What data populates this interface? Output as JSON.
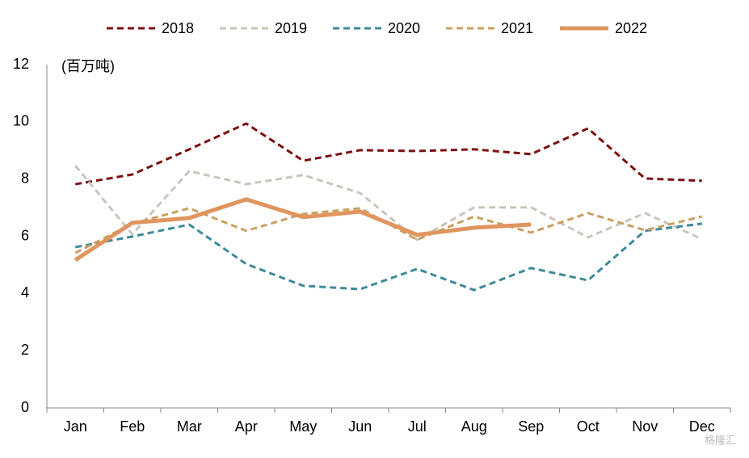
{
  "chart_data": {
    "type": "line",
    "annotation": "(百万吨)",
    "watermark": "格隆汇",
    "categories": [
      "Jan",
      "Feb",
      "Mar",
      "Apr",
      "May",
      "Jun",
      "Jul",
      "Aug",
      "Sep",
      "Oct",
      "Nov",
      "Dec"
    ],
    "series": [
      {
        "name": "2018",
        "color": "#7b1010",
        "dash": true,
        "values": [
          7.82,
          8.16,
          9.04,
          9.94,
          8.64,
          9.01,
          8.98,
          9.04,
          8.87,
          9.77,
          8.02,
          7.94
        ]
      },
      {
        "name": "2019",
        "color": "#c9c5bc",
        "dash": true,
        "values": [
          8.47,
          6.07,
          8.28,
          7.82,
          8.14,
          7.51,
          5.88,
          7.01,
          7.01,
          5.96,
          6.81,
          5.9
        ]
      },
      {
        "name": "2020",
        "color": "#3e8a9b",
        "dash": true,
        "values": [
          5.62,
          5.99,
          6.41,
          5.03,
          4.27,
          4.15,
          4.86,
          4.12,
          4.89,
          4.46,
          6.19,
          6.44
        ]
      },
      {
        "name": "2021",
        "color": "#c9a062",
        "dash": true,
        "values": [
          5.42,
          6.44,
          6.98,
          6.19,
          6.78,
          6.98,
          5.88,
          6.69,
          6.13,
          6.81,
          6.21,
          6.69
        ]
      },
      {
        "name": "2022",
        "color": "#e0955f",
        "dash": false,
        "values": [
          5.17,
          6.47,
          6.64,
          7.29,
          6.67,
          6.86,
          6.05,
          6.3,
          6.41,
          null,
          null,
          null
        ]
      }
    ],
    "ylim": [
      0,
      12
    ],
    "yticks": [
      0,
      2,
      4,
      6,
      8,
      10,
      12
    ],
    "grid": false,
    "legend": "top"
  }
}
